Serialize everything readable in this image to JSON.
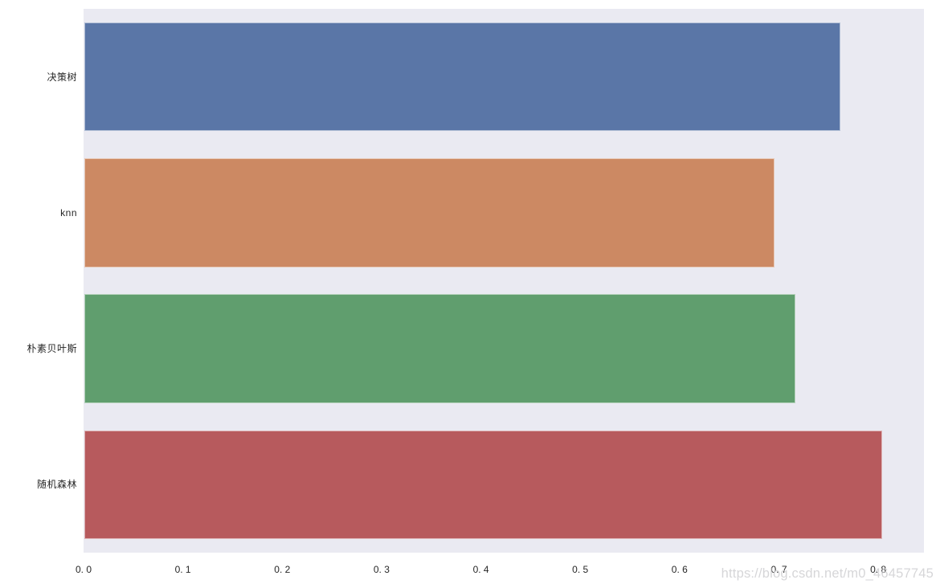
{
  "chart_data": {
    "type": "bar",
    "orientation": "horizontal",
    "title": "",
    "xlabel": "",
    "ylabel": "",
    "categories": [
      "决策树",
      "knn",
      "朴素贝叶斯",
      "随机森林"
    ],
    "values": [
      0.761,
      0.695,
      0.716,
      0.803
    ],
    "bar_colors": [
      "#5a76a7",
      "#cc8963",
      "#609e6e",
      "#b75a5d"
    ],
    "xlim": [
      0,
      0.846
    ],
    "x_ticks": [
      0.0,
      0.1,
      0.2,
      0.3,
      0.4,
      0.5,
      0.6,
      0.7,
      0.8
    ],
    "x_tick_labels": [
      "0. 0",
      "0. 1",
      "0. 2",
      "0. 3",
      "0. 4",
      "0. 5",
      "0. 6",
      "0. 7",
      "0. 8"
    ],
    "grid": false,
    "legend": null,
    "plot_background": "#eaeaf2",
    "figure_background": "#ffffff",
    "tick_label_color": "#262626"
  },
  "watermark": {
    "text": "https://blog.csdn.net/m0_46457745",
    "color": "#cfcfd2"
  }
}
